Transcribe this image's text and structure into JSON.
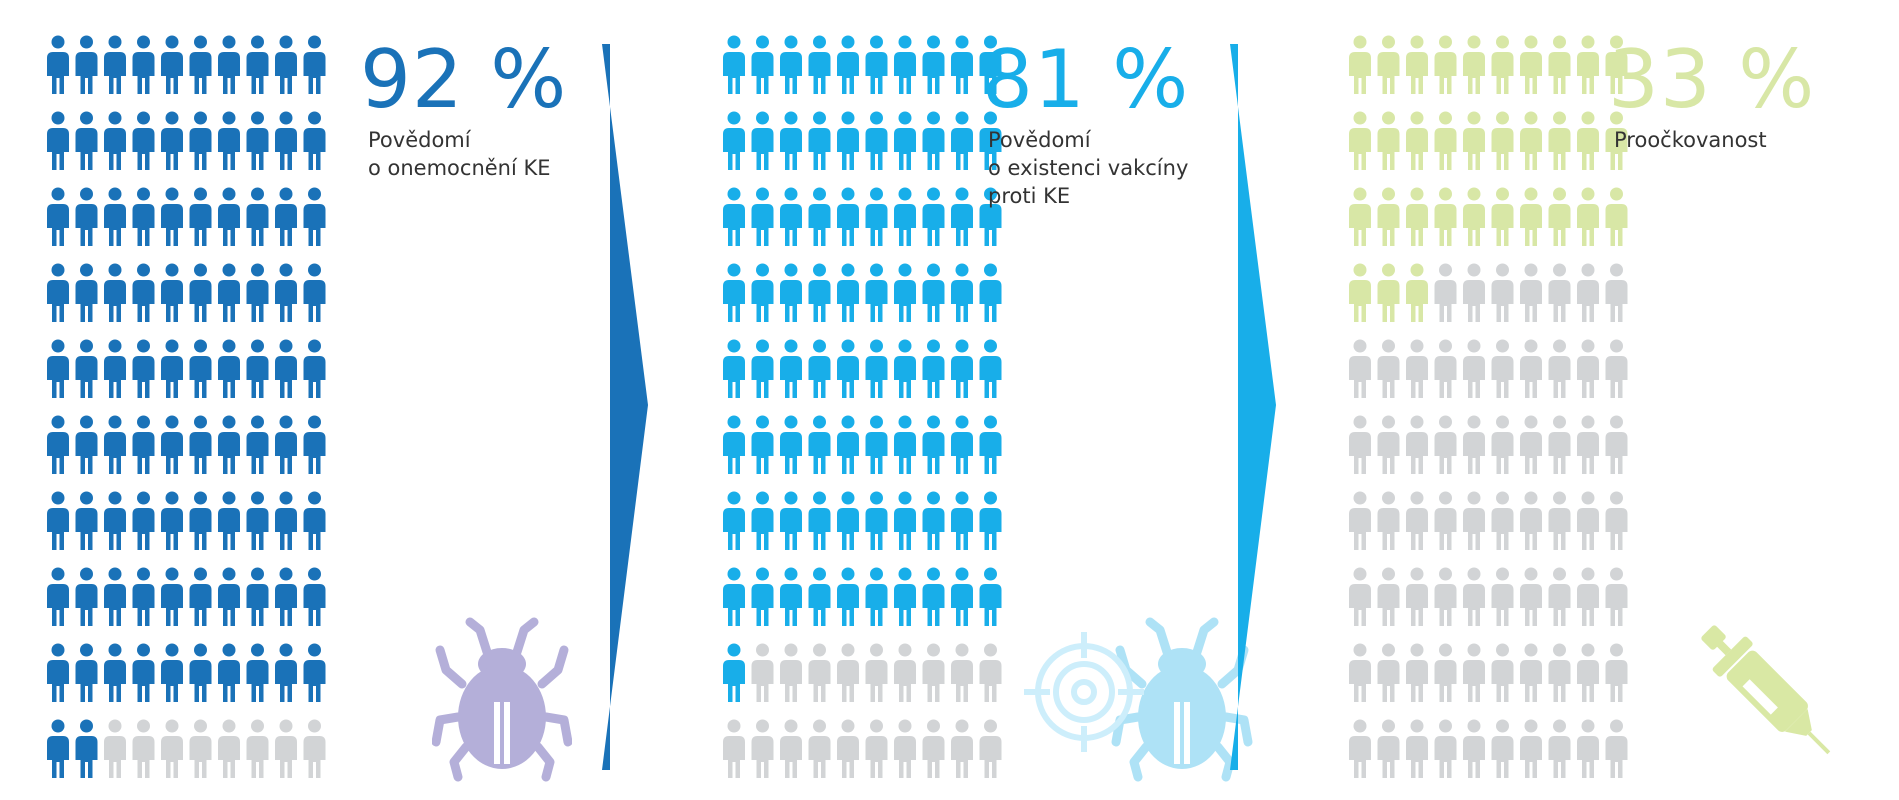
{
  "colors": {
    "panel1": "#1a72b8",
    "panel2": "#18aee9",
    "panel3": "#d8e7a6",
    "inactive": "#d2d4d6",
    "bug": "#b4afd9",
    "bug2": "#aee2f6",
    "target": "#cdeefb",
    "syringe": "#d9e8a4",
    "arrow1": "#1a72b8",
    "arrow2": "#18aee9"
  },
  "chart_data": [
    {
      "type": "pictogram",
      "unit": "person-icon",
      "total": 100,
      "highlighted": 92,
      "value_label": "92 %",
      "caption_lines": [
        "Povědomí",
        "o onemocnění KE"
      ],
      "emblem": "bug-icon"
    },
    {
      "type": "pictogram",
      "unit": "person-icon",
      "total": 100,
      "highlighted": 81,
      "value_label": "81 %",
      "caption_lines": [
        "Povědomí",
        "o existenci vakcíny",
        "proti KE"
      ],
      "emblem": "bug-target-icon"
    },
    {
      "type": "pictogram",
      "unit": "person-icon",
      "total": 100,
      "highlighted": 33,
      "value_label": "33 %",
      "caption_lines": [
        "Proočkovanost"
      ],
      "emblem": "syringe-icon"
    }
  ]
}
